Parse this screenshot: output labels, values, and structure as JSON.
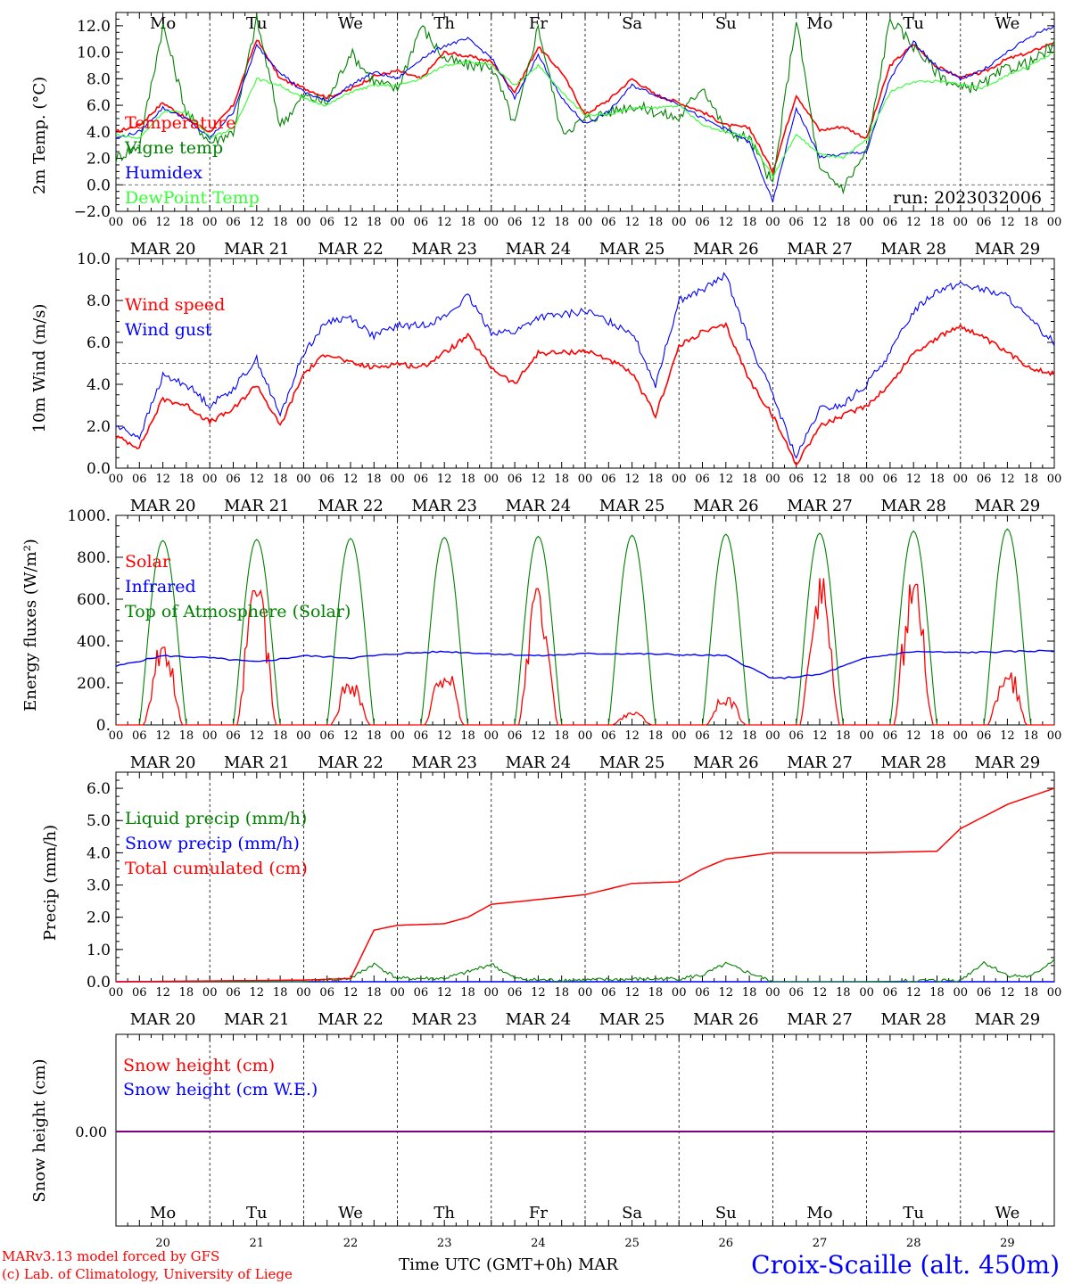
{
  "colors": {
    "red": "#ff0000",
    "green": "#008000",
    "blue": "#0000ff",
    "lightgreen": "#33ff33",
    "purple": "#800080",
    "weekend": "#ff0000"
  },
  "hour_ticks": [
    "00",
    "06",
    "12",
    "18"
  ],
  "date_labels": [
    "MAR 20",
    "MAR 21",
    "MAR 22",
    "MAR 23",
    "MAR 24",
    "MAR 25",
    "MAR 26",
    "MAR 27",
    "MAR 28",
    "MAR 29"
  ],
  "weekday_labels": [
    "Mo",
    "Tu",
    "We",
    "Th",
    "Fr",
    "Sa",
    "Su",
    "Mo",
    "Tu",
    "We"
  ],
  "weekend_days": [
    5,
    6
  ],
  "day_numbers": [
    "20",
    "21",
    "22",
    "23",
    "24",
    "25",
    "26",
    "27",
    "28",
    "29"
  ],
  "run_label": "run: 2023032006",
  "footer": {
    "model_line": "MARv3.13 model forced by GFS",
    "lab_line": "(c) Lab. of Climatology, University of Liege",
    "axis_title": "Time UTC (GMT+0h)",
    "month": "MAR",
    "station": "Croix-Scaille (alt. 450m)"
  },
  "chart_data": [
    {
      "type": "line",
      "ylabel": "2m Temp. (°C)",
      "ylim": [
        -2,
        13
      ],
      "yticks": [
        "12.0",
        "10.0",
        "8.0",
        "6.0",
        "4.0",
        "2.0",
        "0.0",
        "−2.0"
      ],
      "ytick_values": [
        12,
        10,
        8,
        6,
        4,
        2,
        0,
        -2
      ],
      "reference_line": 0,
      "x_hours": [
        0,
        6,
        12,
        18,
        24,
        30,
        36,
        42,
        48,
        54,
        60,
        66,
        72,
        78,
        84,
        90,
        96,
        102,
        108,
        114,
        120,
        126,
        132,
        138,
        144,
        150,
        156,
        162,
        168,
        174,
        180,
        186,
        192,
        198,
        204,
        210,
        216,
        222,
        228,
        234,
        240
      ],
      "series": [
        {
          "name": "Temperature",
          "color": "#ff0000",
          "values": [
            4.0,
            4.5,
            6.2,
            5.0,
            4.0,
            6.0,
            11.0,
            8.0,
            7.3,
            6.6,
            7.2,
            8.2,
            8.6,
            8.0,
            10.0,
            9.7,
            9.3,
            7.0,
            10.4,
            8.5,
            5.3,
            6.4,
            8.0,
            6.8,
            6.2,
            5.5,
            4.5,
            4.3,
            1.0,
            6.8,
            4.1,
            4.4,
            3.5,
            9.0,
            10.6,
            8.9,
            8.1,
            8.5,
            9.5,
            10.0,
            10.8
          ]
        },
        {
          "name": "Vigne temp",
          "color": "#008000",
          "values": [
            2.0,
            3.0,
            12.0,
            5.5,
            3.2,
            4.0,
            12.5,
            4.5,
            6.7,
            6.2,
            10.0,
            7.8,
            7.2,
            12.0,
            9.5,
            9.0,
            9.0,
            4.5,
            12.0,
            4.0,
            4.9,
            5.5,
            6.0,
            5.5,
            5.0,
            7.5,
            4.0,
            3.5,
            0.0,
            12.5,
            1.0,
            -0.2,
            2.5,
            12.5,
            10.5,
            8.5,
            7.2,
            7.6,
            8.8,
            9.2,
            10.5
          ]
        },
        {
          "name": "Humidex",
          "color": "#0000ff",
          "values": [
            3.5,
            4.0,
            5.8,
            5.0,
            3.5,
            5.5,
            10.5,
            8.5,
            7.0,
            6.3,
            7.5,
            8.5,
            8.0,
            9.5,
            10.5,
            11.0,
            9.6,
            6.5,
            9.8,
            6.5,
            4.6,
            5.5,
            7.5,
            6.8,
            6.1,
            5.0,
            4.2,
            3.2,
            -1.3,
            5.8,
            2.1,
            2.3,
            2.5,
            8.0,
            10.8,
            8.9,
            8.0,
            8.7,
            10.0,
            11.2,
            12.0
          ]
        },
        {
          "name": "DewPoint Temp",
          "color": "#33ff33",
          "values": [
            3.8,
            3.5,
            5.5,
            5.5,
            3.6,
            4.2,
            8.0,
            7.5,
            6.5,
            6.0,
            7.0,
            7.5,
            7.5,
            8.0,
            9.0,
            9.3,
            9.0,
            7.5,
            9.0,
            7.0,
            5.3,
            5.3,
            5.8,
            5.8,
            6.0,
            4.5,
            4.0,
            3.6,
            0.6,
            3.8,
            2.3,
            2.0,
            3.4,
            7.0,
            7.8,
            7.8,
            7.6,
            7.3,
            8.3,
            9.0,
            10.0
          ]
        }
      ]
    },
    {
      "type": "line",
      "ylabel": "10m Wind (m/s)",
      "ylim": [
        0,
        10
      ],
      "yticks": [
        "10.0",
        "8.0",
        "6.0",
        "4.0",
        "2.0",
        "0.0"
      ],
      "ytick_values": [
        10,
        8,
        6,
        4,
        2,
        0
      ],
      "reference_line": 5,
      "x_hours": [
        0,
        6,
        12,
        18,
        24,
        30,
        36,
        42,
        48,
        54,
        60,
        66,
        72,
        78,
        84,
        90,
        96,
        102,
        108,
        114,
        120,
        126,
        132,
        138,
        144,
        150,
        156,
        162,
        168,
        174,
        180,
        186,
        192,
        198,
        204,
        210,
        216,
        222,
        228,
        234,
        240
      ],
      "series": [
        {
          "name": "Wind speed",
          "color": "#ff0000",
          "values": [
            1.5,
            1.0,
            3.3,
            3.0,
            2.2,
            2.8,
            4.0,
            2.0,
            4.5,
            5.5,
            5.0,
            4.8,
            5.0,
            4.8,
            5.5,
            6.3,
            4.8,
            4.0,
            5.5,
            5.5,
            5.6,
            5.2,
            4.5,
            2.5,
            5.8,
            6.5,
            6.8,
            4.2,
            2.5,
            0.2,
            2.0,
            2.5,
            3.0,
            4.0,
            5.5,
            6.2,
            6.8,
            6.2,
            5.5,
            4.8,
            4.5
          ]
        },
        {
          "name": "Wind gust",
          "color": "#0000ff",
          "values": [
            2.0,
            1.5,
            4.4,
            4.0,
            3.0,
            3.8,
            5.2,
            2.5,
            5.5,
            7.0,
            7.2,
            6.3,
            6.8,
            6.8,
            7.2,
            8.2,
            6.5,
            6.5,
            7.2,
            7.3,
            7.5,
            7.0,
            6.5,
            4.0,
            8.0,
            8.5,
            9.2,
            6.0,
            3.5,
            0.5,
            2.8,
            3.0,
            4.0,
            5.5,
            7.5,
            8.5,
            8.8,
            8.5,
            8.2,
            7.0,
            6.0
          ]
        }
      ]
    },
    {
      "type": "line",
      "ylabel": "Energy fluxes (W/m²)",
      "ylim": [
        0,
        1000
      ],
      "yticks": [
        "1000.",
        "800.",
        "600.",
        "400.",
        "200.",
        "0."
      ],
      "ytick_values": [
        1000,
        800,
        600,
        400,
        200,
        0
      ],
      "solar_peaks": [
        370,
        640,
        200,
        250,
        650,
        60,
        130,
        700,
        670,
        250
      ],
      "toa_peaks": [
        880,
        885,
        890,
        895,
        900,
        905,
        910,
        915,
        925,
        935
      ],
      "series": [
        {
          "name": "Solar",
          "color": "#ff0000"
        },
        {
          "name": "Infrared",
          "color": "#0000ff",
          "x_hours": [
            0,
            12,
            24,
            36,
            48,
            60,
            72,
            84,
            96,
            108,
            120,
            132,
            144,
            156,
            168,
            180,
            192,
            204,
            216,
            228,
            240
          ],
          "values": [
            280,
            330,
            320,
            300,
            330,
            320,
            340,
            350,
            340,
            330,
            340,
            340,
            335,
            330,
            220,
            240,
            320,
            350,
            345,
            350,
            355
          ]
        },
        {
          "name": "Top of Atmosphere (Solar)",
          "color": "#008000"
        }
      ]
    },
    {
      "type": "line",
      "ylabel": "Precip (mm/h)",
      "ylim": [
        0,
        6.5
      ],
      "yticks": [
        "6.0",
        "5.0",
        "4.0",
        "3.0",
        "2.0",
        "1.0",
        "0.0"
      ],
      "ytick_values": [
        6,
        5,
        4,
        3,
        2,
        1,
        0
      ],
      "series": [
        {
          "name": "Liquid precip (mm/h)",
          "color": "#008000",
          "x_hours": [
            0,
            48,
            60,
            66,
            72,
            84,
            90,
            96,
            102,
            108,
            120,
            144,
            150,
            156,
            168,
            192,
            216,
            222,
            228,
            234,
            240
          ],
          "values": [
            0,
            0,
            0.1,
            0.55,
            0.1,
            0.1,
            0.3,
            0.55,
            0.1,
            0.05,
            0.05,
            0.1,
            0.2,
            0.55,
            0,
            0,
            0.05,
            0.6,
            0.2,
            0.15,
            0.7
          ]
        },
        {
          "name": "Snow precip (mm/h)",
          "color": "#0000ff",
          "x_hours": [
            0,
            240
          ],
          "values": [
            0,
            0
          ]
        },
        {
          "name": "Total cumulated (cm)",
          "color": "#ff0000",
          "x_hours": [
            0,
            48,
            60,
            66,
            72,
            84,
            90,
            96,
            108,
            120,
            132,
            144,
            150,
            156,
            168,
            192,
            210,
            216,
            228,
            240
          ],
          "values": [
            0,
            0.05,
            0.1,
            1.6,
            1.75,
            1.8,
            2.0,
            2.4,
            2.55,
            2.7,
            3.05,
            3.1,
            3.5,
            3.8,
            4.0,
            4.0,
            4.05,
            4.75,
            5.5,
            6.0
          ]
        }
      ]
    },
    {
      "type": "line",
      "ylabel": "Snow height (cm)",
      "yticks": [
        "0.00"
      ],
      "series": [
        {
          "name": "Snow height (cm)",
          "color": "#ff0000",
          "values": [
            0,
            0
          ]
        },
        {
          "name": "Snow height (cm W.E.)",
          "color": "#0000ff",
          "values": [
            0,
            0
          ]
        }
      ]
    }
  ]
}
